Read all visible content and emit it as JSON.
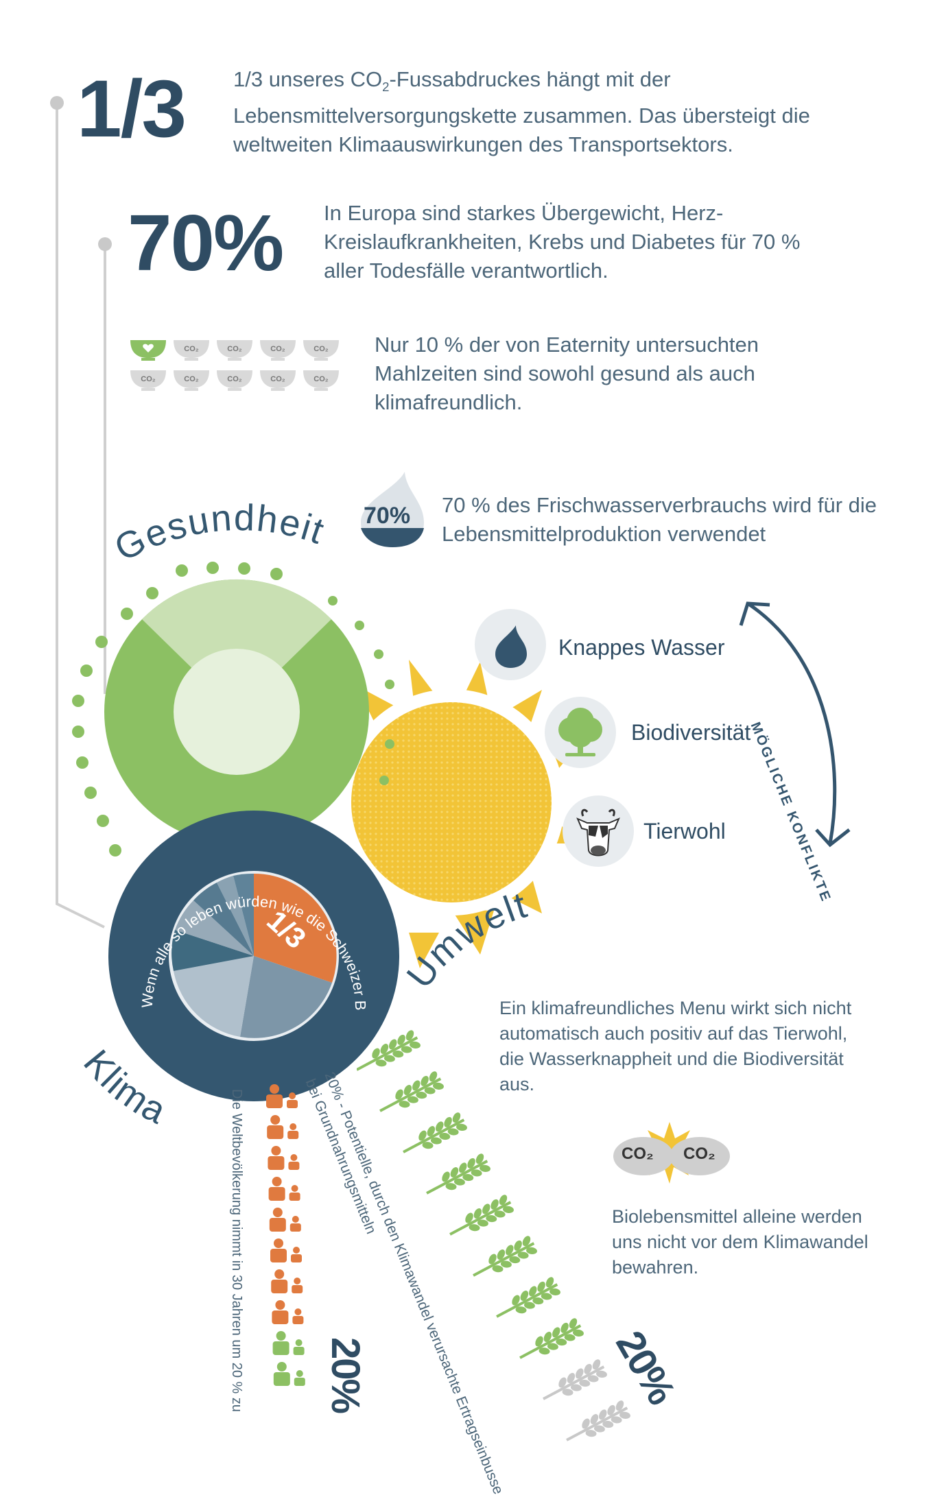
{
  "stat1": {
    "value": "1/3",
    "text_a": "1/3 unseres CO",
    "text_sub": "2",
    "text_b": "-Fussabdruckes hängt mit der Lebensmittelversorgungskette zusammen. Das übersteigt die weltweiten Klimaauswirkungen des Transportsektors."
  },
  "stat2": {
    "value": "70%",
    "text": "In Europa sind starkes Übergewicht, Herz-Kreislaufkrankheiten, Krebs und Diabetes für 70 % aller Todesfälle verantwortlich."
  },
  "meals": {
    "bowl_label": "CO₂",
    "healthy_count": 1,
    "total_count": 10,
    "text": "Nur 10 % der von Eaternity untersuchten Mahlzeiten sind sowohl gesund als auch klimafreundlich."
  },
  "water": {
    "badge": "70%",
    "text": "70 % des Frischwasserverbrauchs wird für die Lebensmittelproduktion verwendet"
  },
  "sections": {
    "health": "Gesundheit",
    "environment": "Umwelt",
    "climate": "Klima"
  },
  "climate_ring": {
    "arc_text": "Wenn alle so leben würden wie die Schweizer Bevölkerung bräuchten wir drei Planeten, um uns zu versorgen.",
    "pie_label": "1/3"
  },
  "conflicts": {
    "title": "MÖGLICHE KONFLIKTE",
    "items": [
      {
        "label": "Knappes Wasser",
        "icon": "water-drop-icon"
      },
      {
        "label": "Biodiversität",
        "icon": "tree-icon"
      },
      {
        "label": "Tierwohl",
        "icon": "cow-icon"
      }
    ]
  },
  "menu_note": "Ein klimafreundliches Menu wirkt sich nicht automatisch auch positiv auf das Tierwohl, die Wasserknappheit und die Biodiversität aus.",
  "bio": {
    "co2_left": "CO₂",
    "co2_right": "CO₂",
    "text": "Biolebensmittel alleine werden uns nicht vor dem Klimawandel bewahren."
  },
  "population": {
    "value": "20%",
    "text": "Die Weltbevölkerung nimmt in 30 Jahren um 20 % zu",
    "orange_count": 8,
    "green_count": 2
  },
  "yield": {
    "value": "20%",
    "text_line1": "20% - Potentielle, durch den Klimawandel verursachte Ertragseinbusse",
    "text_line2": "bei Grundnahrungsmitteln",
    "green_count": 8,
    "grey_count": 2
  },
  "colors": {
    "navy": "#2f4c63",
    "orange": "#e07a3f",
    "green": "#8cc063",
    "light_green": "#c9e0b3",
    "yellow": "#f2c437",
    "grey": "#c8c8c8"
  }
}
